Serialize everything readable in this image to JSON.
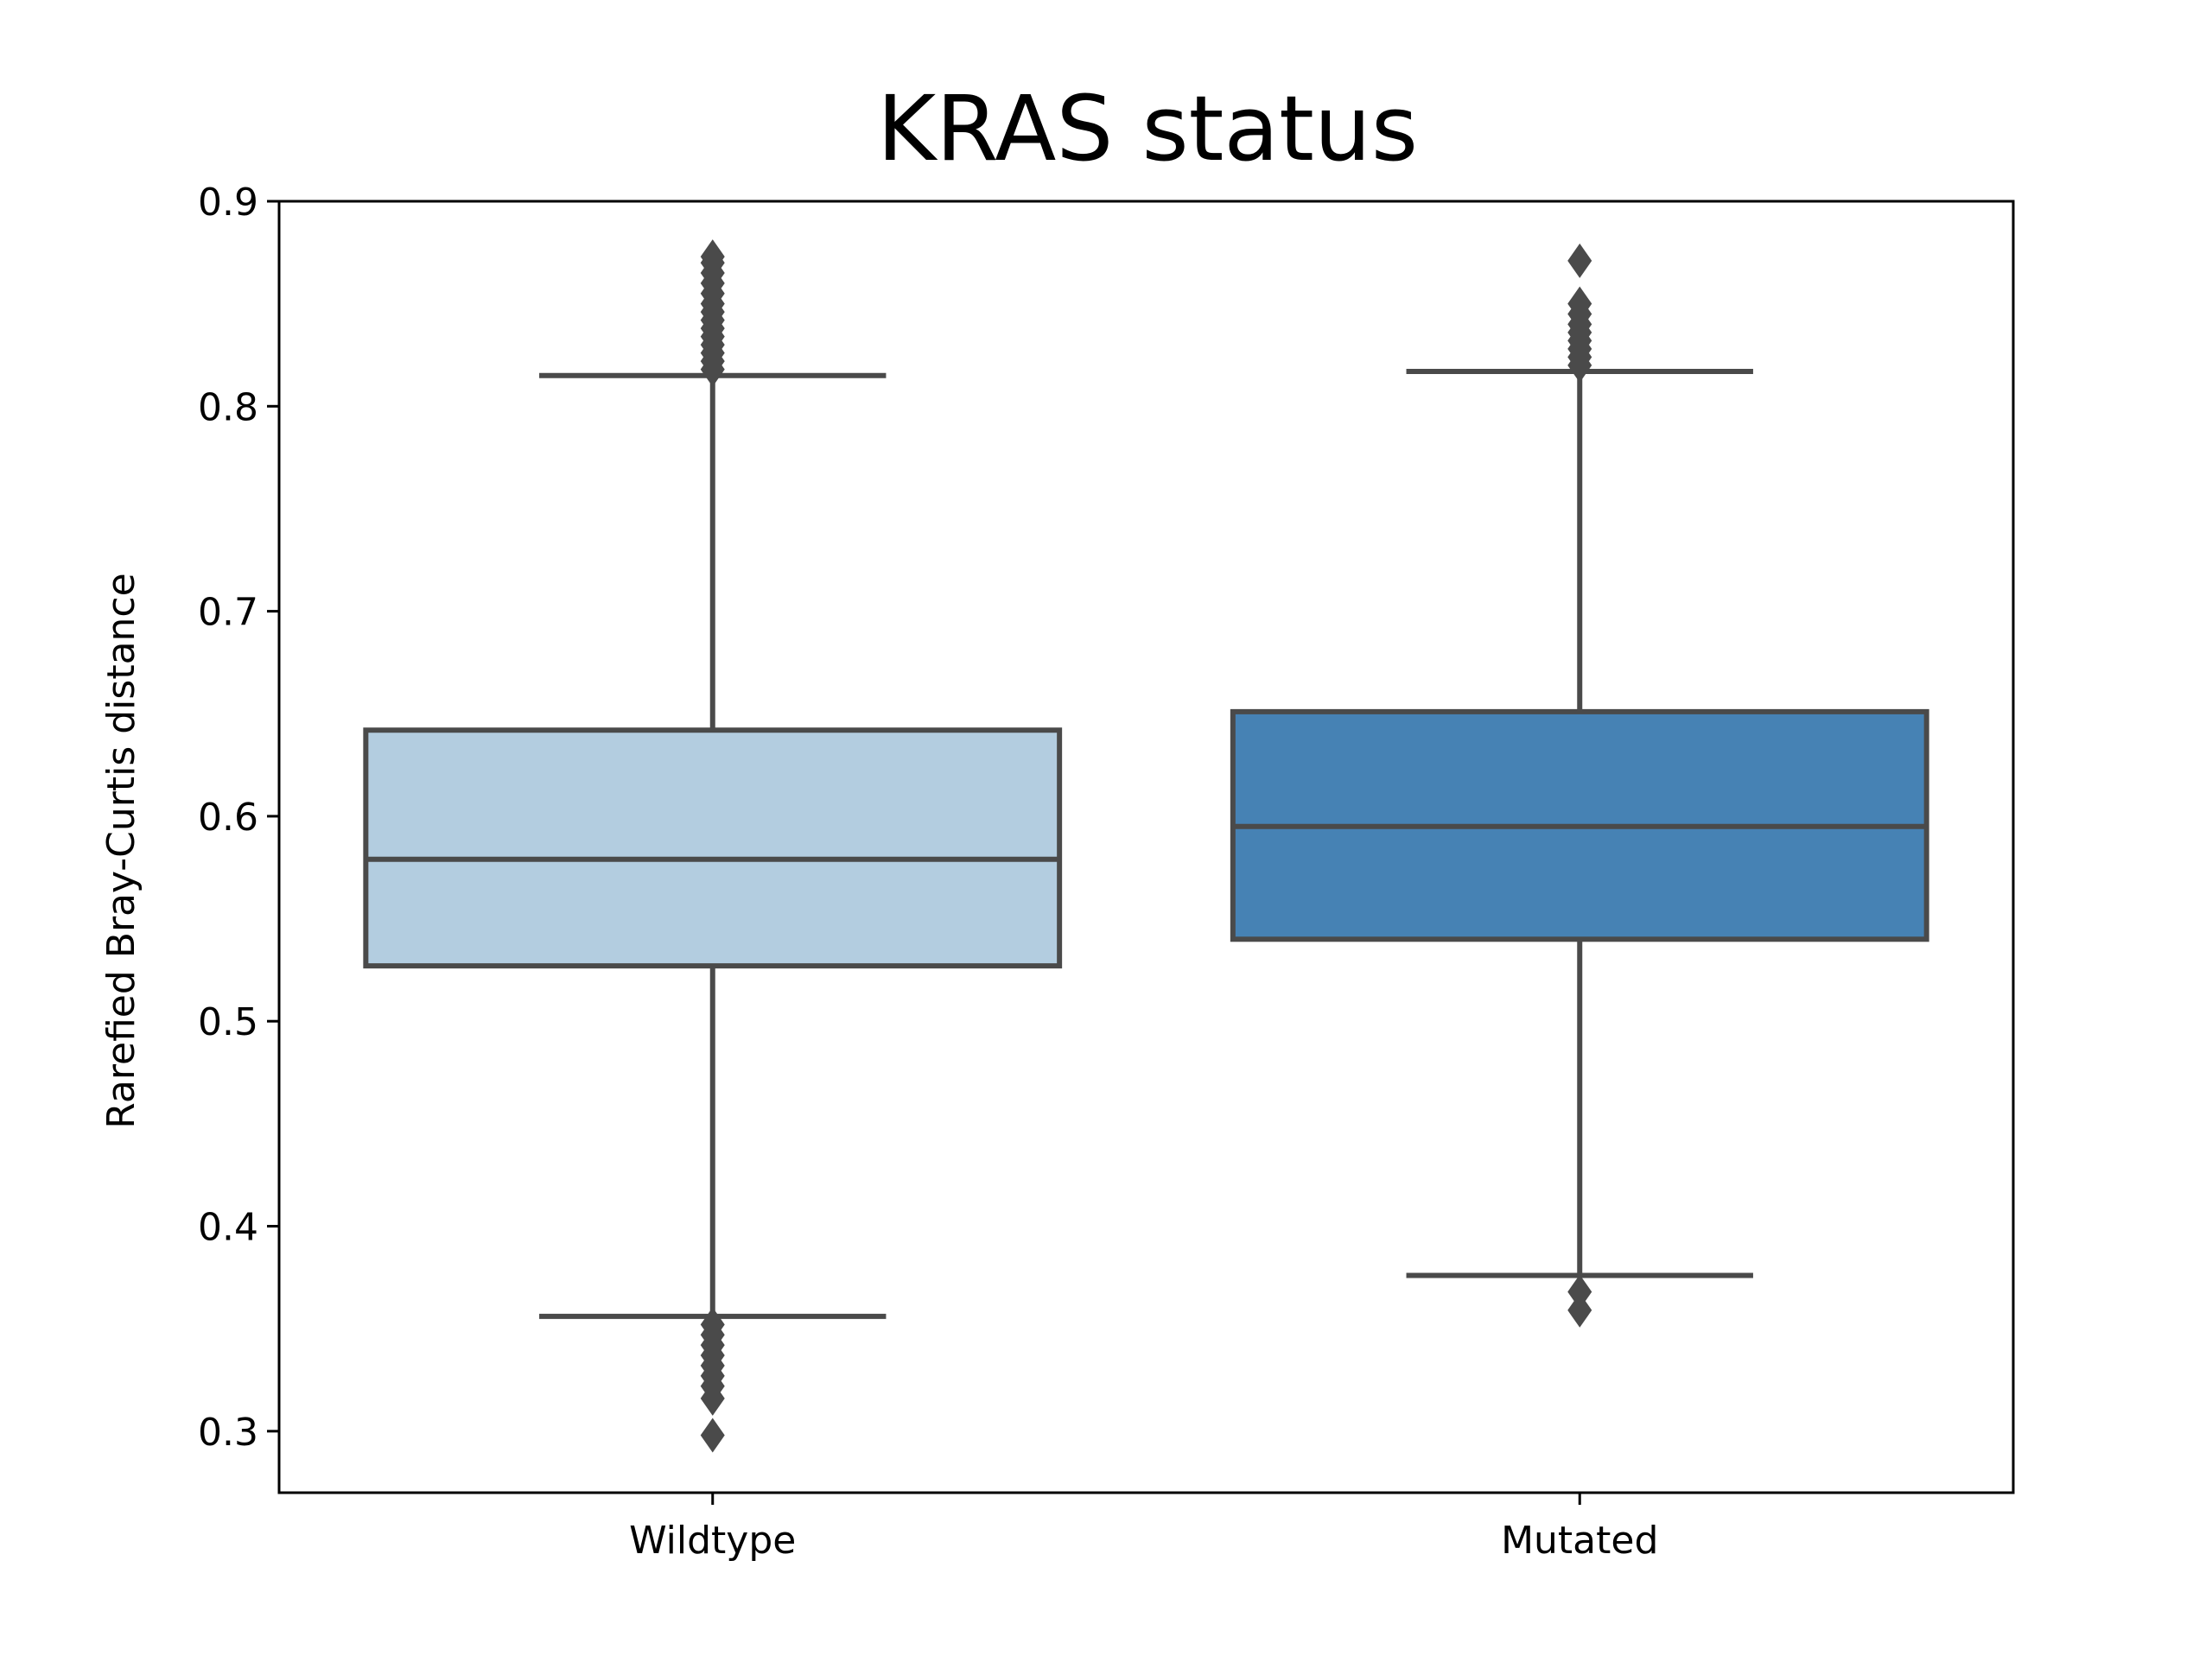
{
  "chart_data": {
    "type": "box",
    "title": "KRAS status",
    "xlabel": "",
    "ylabel": "Rarefied Bray-Curtis distance",
    "ylim": [
      0.27,
      0.9
    ],
    "yticks": [
      0.3,
      0.4,
      0.5,
      0.6,
      0.7,
      0.8,
      0.9
    ],
    "ytick_labels": [
      "0.3",
      "0.4",
      "0.5",
      "0.6",
      "0.7",
      "0.8",
      "0.9"
    ],
    "categories": [
      "Wildtype",
      "Mutated"
    ],
    "grid": false,
    "legend": "none",
    "series": [
      {
        "category": "Wildtype",
        "color": "#b3cde0",
        "whisker_low": 0.356,
        "q1": 0.527,
        "median": 0.579,
        "q3": 0.642,
        "whisker_high": 0.815,
        "outliers": [
          0.818,
          0.822,
          0.826,
          0.83,
          0.834,
          0.838,
          0.842,
          0.846,
          0.85,
          0.855,
          0.86,
          0.865,
          0.87,
          0.873,
          0.352,
          0.347,
          0.342,
          0.337,
          0.332,
          0.327,
          0.322,
          0.316,
          0.298
        ]
      },
      {
        "category": "Mutated",
        "color": "#4682b4",
        "whisker_low": 0.376,
        "q1": 0.54,
        "median": 0.595,
        "q3": 0.651,
        "whisker_high": 0.817,
        "outliers": [
          0.82,
          0.824,
          0.828,
          0.832,
          0.836,
          0.84,
          0.845,
          0.85,
          0.871,
          0.368,
          0.359
        ]
      }
    ],
    "colors": {
      "line": "#4a4a4a",
      "axis": "#000000"
    }
  }
}
